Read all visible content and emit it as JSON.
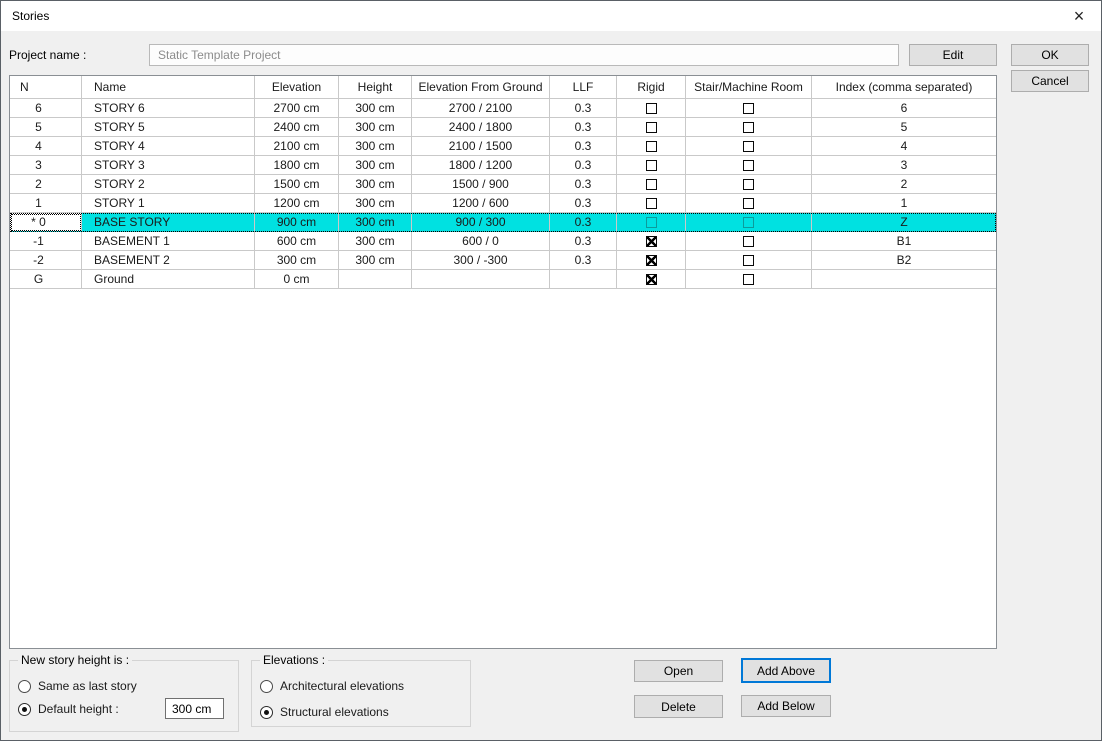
{
  "window": {
    "title": "Stories"
  },
  "icons": {
    "close": "×"
  },
  "colors": {
    "selection": "#00e1e1",
    "focus_border": "#0078d7"
  },
  "header": {
    "project_name_label": "Project name :",
    "project_name_value": "Static Template Project",
    "edit_button": "Edit",
    "ok_button": "OK",
    "cancel_button": "Cancel"
  },
  "table": {
    "columns": [
      "N",
      "Name",
      "Elevation",
      "Height",
      "Elevation From Ground",
      "LLF",
      "Rigid",
      "Stair/Machine Room",
      "Index (comma separated)"
    ],
    "rows": [
      {
        "n": "6",
        "name": "STORY 6",
        "elevation": "2700 cm",
        "height": "300 cm",
        "elevation_from_ground": "2700 / 2100",
        "llf": "0.3",
        "rigid": false,
        "stair_machine_room": false,
        "index": "6",
        "selected": false
      },
      {
        "n": "5",
        "name": "STORY 5",
        "elevation": "2400 cm",
        "height": "300 cm",
        "elevation_from_ground": "2400 / 1800",
        "llf": "0.3",
        "rigid": false,
        "stair_machine_room": false,
        "index": "5",
        "selected": false
      },
      {
        "n": "4",
        "name": "STORY 4",
        "elevation": "2100 cm",
        "height": "300 cm",
        "elevation_from_ground": "2100 / 1500",
        "llf": "0.3",
        "rigid": false,
        "stair_machine_room": false,
        "index": "4",
        "selected": false
      },
      {
        "n": "3",
        "name": "STORY 3",
        "elevation": "1800 cm",
        "height": "300 cm",
        "elevation_from_ground": "1800 / 1200",
        "llf": "0.3",
        "rigid": false,
        "stair_machine_room": false,
        "index": "3",
        "selected": false
      },
      {
        "n": "2",
        "name": "STORY 2",
        "elevation": "1500 cm",
        "height": "300 cm",
        "elevation_from_ground": "1500 / 900",
        "llf": "0.3",
        "rigid": false,
        "stair_machine_room": false,
        "index": "2",
        "selected": false
      },
      {
        "n": "1",
        "name": "STORY 1",
        "elevation": "1200 cm",
        "height": "300 cm",
        "elevation_from_ground": "1200 / 600",
        "llf": "0.3",
        "rigid": false,
        "stair_machine_room": false,
        "index": "1",
        "selected": false
      },
      {
        "n": "* 0",
        "name": "BASE STORY",
        "elevation": "900 cm",
        "height": "300 cm",
        "elevation_from_ground": "900 / 300",
        "llf": "0.3",
        "rigid": false,
        "stair_machine_room": false,
        "index": "Z",
        "selected": true
      },
      {
        "n": "-1",
        "name": "BASEMENT 1",
        "elevation": "600 cm",
        "height": "300 cm",
        "elevation_from_ground": "600 / 0",
        "llf": "0.3",
        "rigid": true,
        "stair_machine_room": false,
        "index": "B1",
        "selected": false
      },
      {
        "n": "-2",
        "name": "BASEMENT 2",
        "elevation": "300 cm",
        "height": "300 cm",
        "elevation_from_ground": "300 / -300",
        "llf": "0.3",
        "rigid": true,
        "stair_machine_room": false,
        "index": "B2",
        "selected": false
      },
      {
        "n": "G",
        "name": "Ground",
        "elevation": "0 cm",
        "height": "",
        "elevation_from_ground": "",
        "llf": "",
        "rigid": true,
        "stair_machine_room": false,
        "index": "",
        "selected": false
      }
    ]
  },
  "footer": {
    "new_story_group": {
      "label": "New story height is :",
      "options": [
        {
          "label": "Same as last story",
          "selected": false
        },
        {
          "label": "Default height :",
          "selected": true
        }
      ],
      "default_height_value": "300 cm"
    },
    "elevations_group": {
      "label": "Elevations :",
      "options": [
        {
          "label": "Architectural elevations",
          "selected": false
        },
        {
          "label": "Structural elevations",
          "selected": true
        }
      ]
    },
    "buttons": {
      "open": "Open",
      "delete": "Delete",
      "add_above": "Add Above",
      "add_below": "Add Below"
    }
  }
}
